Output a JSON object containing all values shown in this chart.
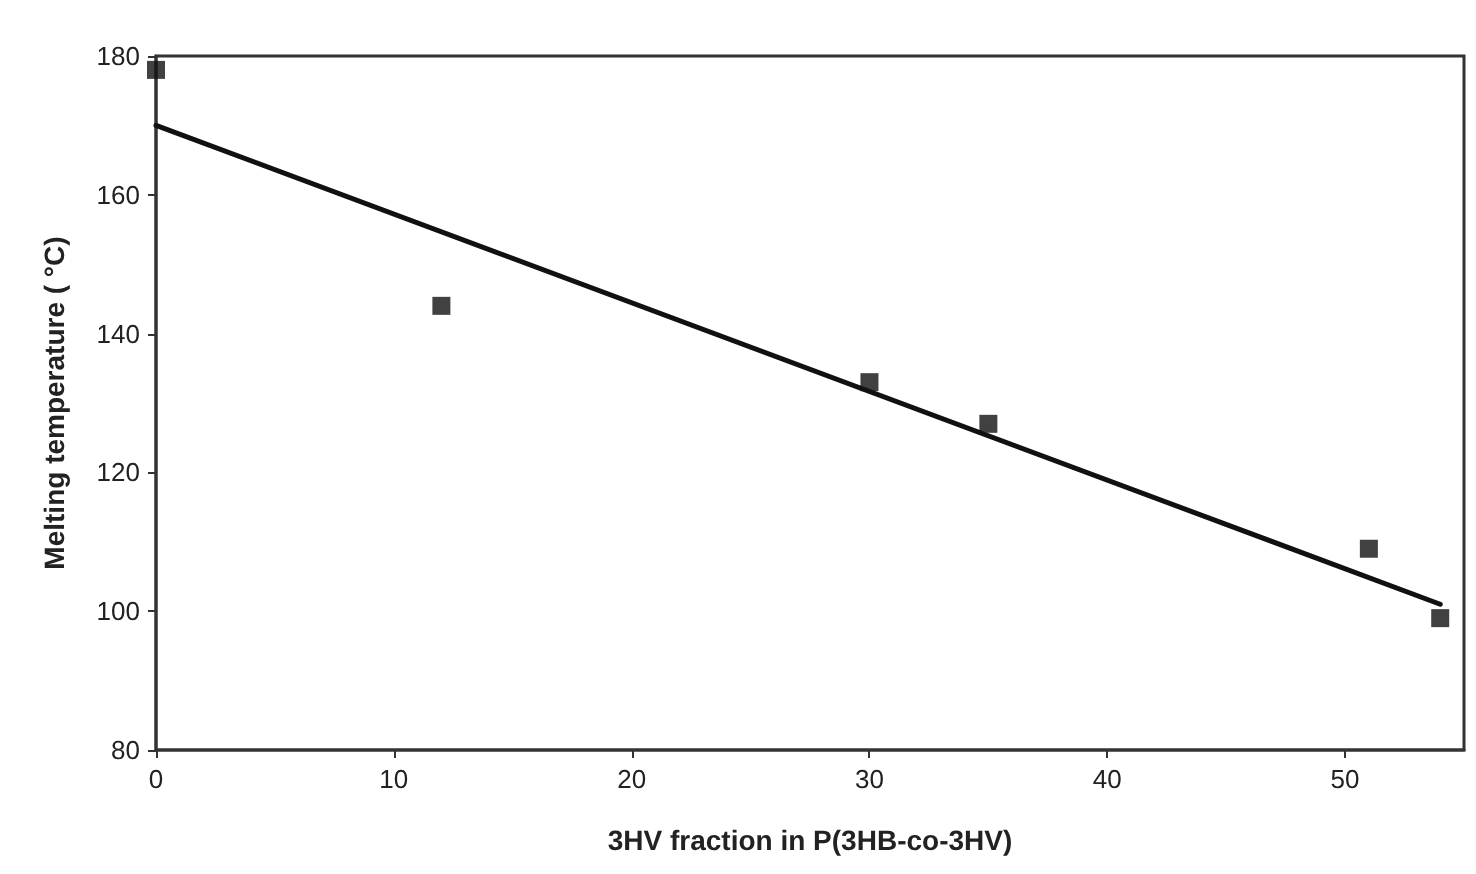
{
  "chart_data": {
    "type": "scatter",
    "xlabel": "3HV fraction in P(3HB-co-3HV)",
    "ylabel": "Melting temperature ( °C)",
    "xlim": [
      0,
      55
    ],
    "xticks": [
      0,
      10,
      20,
      30,
      40,
      50
    ],
    "ylim": [
      80,
      180
    ],
    "yticks": [
      80,
      100,
      120,
      140,
      160,
      180
    ],
    "grid": false,
    "marker": "square",
    "series": [
      {
        "color": "#111111",
        "x": [
          0,
          12,
          30,
          35,
          51,
          54
        ],
        "values": [
          178,
          144,
          133,
          127,
          109,
          99
        ]
      },
      {
        "type": "line",
        "color": "#111111",
        "x": [
          0,
          54
        ],
        "values": [
          170,
          101
        ],
        "marker": "none",
        "line_style": "solid"
      }
    ]
  }
}
